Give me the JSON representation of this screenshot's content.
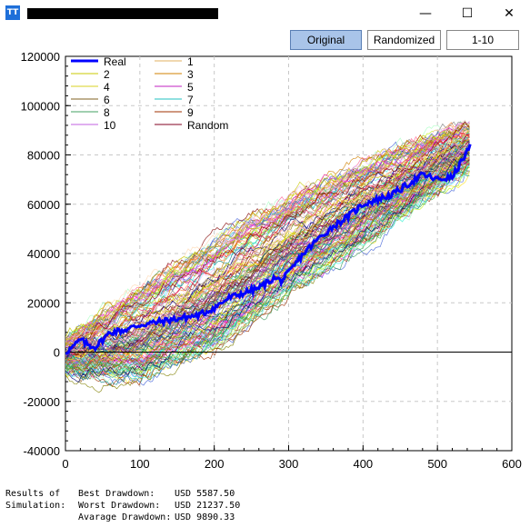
{
  "window": {
    "app_icon_text": "TT",
    "minimize_glyph": "—",
    "maximize_glyph": "☐",
    "close_glyph": "✕"
  },
  "toolbar": {
    "original_label": "Original",
    "randomized_label": "Randomized",
    "range_label": "1-10",
    "active": "Original"
  },
  "chart_data": {
    "type": "line",
    "title": "",
    "xlabel": "",
    "ylabel": "",
    "xlim": [
      0,
      600
    ],
    "ylim": [
      -40000,
      120000
    ],
    "x_ticks": [
      0,
      100,
      200,
      300,
      400,
      500,
      600
    ],
    "y_ticks": [
      -40000,
      -20000,
      0,
      20000,
      40000,
      60000,
      80000,
      100000,
      120000
    ],
    "x_tick_labels": [
      "0",
      "100",
      "200",
      "300",
      "400",
      "500",
      "600"
    ],
    "y_tick_labels": [
      "-40000",
      "-20000",
      "0",
      "20000",
      "40000",
      "60000",
      "80000",
      "100000",
      "120000"
    ],
    "grid": true,
    "legend_placement": "top-left",
    "legend": [
      {
        "name": "Real",
        "color": "#0000ff"
      },
      {
        "name": "1",
        "color": "#e0b060"
      },
      {
        "name": "2",
        "color": "#c8c800"
      },
      {
        "name": "3",
        "color": "#d08000"
      },
      {
        "name": "4",
        "color": "#d8d020"
      },
      {
        "name": "5",
        "color": "#c020c0"
      },
      {
        "name": "6",
        "color": "#806020"
      },
      {
        "name": "7",
        "color": "#20c0c0"
      },
      {
        "name": "8",
        "color": "#40a060"
      },
      {
        "name": "9",
        "color": "#a03000"
      },
      {
        "name": "10",
        "color": "#c060e0"
      },
      {
        "name": "Random",
        "color": "#800020"
      }
    ],
    "series": [
      {
        "name": "Real",
        "color": "#0000ff",
        "x": [
          0,
          10,
          20,
          30,
          40,
          50,
          60,
          80,
          100,
          120,
          140,
          160,
          180,
          200,
          220,
          240,
          260,
          280,
          290,
          300,
          320,
          340,
          360,
          380,
          400,
          420,
          440,
          460,
          480,
          500,
          520,
          530,
          545
        ],
        "y": [
          0,
          2000,
          5000,
          3000,
          2000,
          5000,
          8000,
          9000,
          11000,
          12000,
          13000,
          14000,
          15000,
          18000,
          22000,
          24000,
          26000,
          30000,
          29000,
          32000,
          40000,
          46000,
          51000,
          55000,
          60000,
          62000,
          64000,
          68000,
          72000,
          70000,
          71000,
          76000,
          84000
        ]
      }
    ],
    "random_band": {
      "count": 150,
      "x_end": 545,
      "upper": [
        [
          0,
          5000
        ],
        [
          100,
          25000
        ],
        [
          200,
          45000
        ],
        [
          300,
          62000
        ],
        [
          400,
          76000
        ],
        [
          500,
          88000
        ],
        [
          545,
          92000
        ]
      ],
      "lower": [
        [
          0,
          -8000
        ],
        [
          100,
          -10000
        ],
        [
          200,
          2000
        ],
        [
          300,
          25000
        ],
        [
          400,
          44000
        ],
        [
          500,
          66000
        ],
        [
          545,
          76000
        ]
      ]
    },
    "zero_line": true
  },
  "results": {
    "label_line1": "Results of",
    "label_line2": "Simulation:",
    "best_label": "Best Drawdown:",
    "best_value": "USD 5587.50",
    "worst_label": "Worst Drawdown:",
    "worst_value": "USD 21237.50",
    "average_label": "Avarage Drawdown:",
    "average_value": "USD 9890.33"
  }
}
